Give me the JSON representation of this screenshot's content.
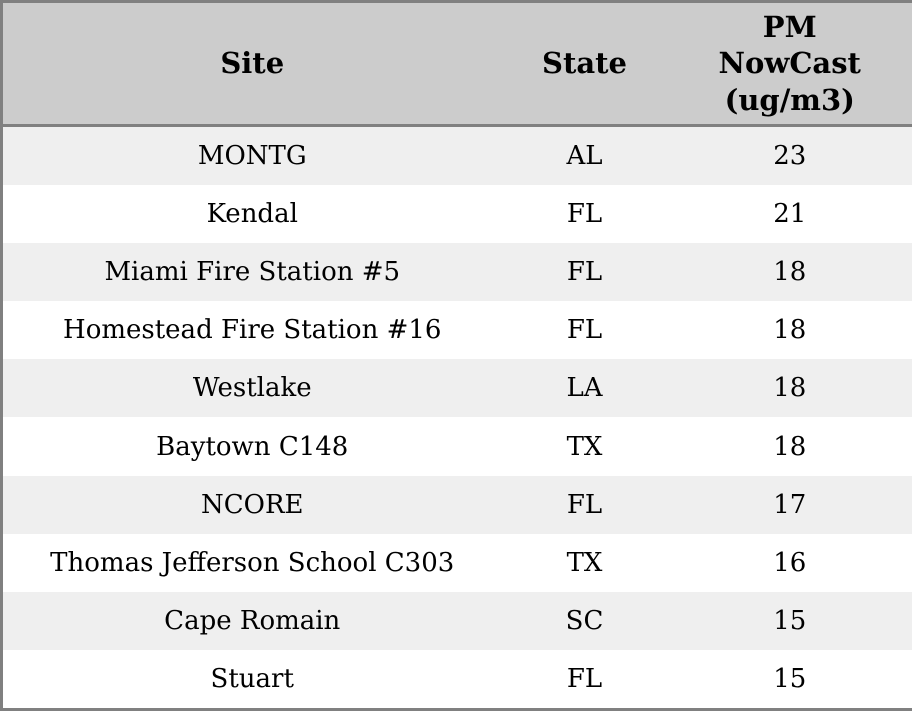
{
  "colors": {
    "header_bg": "#cccccc",
    "row_alt_bg": "#efefef",
    "row_bg": "#ffffff",
    "border": "#808080",
    "text": "#000000"
  },
  "chart_data": {
    "type": "table",
    "title": "",
    "columns": [
      "Site",
      "State",
      "PM\nNowCast\n(ug/m3)"
    ],
    "column_names_plain": [
      "Site",
      "State",
      "PM NowCast (ug/m3)"
    ],
    "rows": [
      {
        "site": "MONTG",
        "state": "AL",
        "pm_nowcast": 23
      },
      {
        "site": "Kendal",
        "state": "FL",
        "pm_nowcast": 21
      },
      {
        "site": "Miami Fire Station #5",
        "state": "FL",
        "pm_nowcast": 18
      },
      {
        "site": "Homestead Fire Station #16",
        "state": "FL",
        "pm_nowcast": 18
      },
      {
        "site": "Westlake",
        "state": "LA",
        "pm_nowcast": 18
      },
      {
        "site": "Baytown C148",
        "state": "TX",
        "pm_nowcast": 18
      },
      {
        "site": "NCORE",
        "state": "FL",
        "pm_nowcast": 17
      },
      {
        "site": "Thomas Jefferson School C303",
        "state": "TX",
        "pm_nowcast": 16
      },
      {
        "site": "Cape Romain",
        "state": "SC",
        "pm_nowcast": 15
      },
      {
        "site": "Stuart",
        "state": "FL",
        "pm_nowcast": 15
      }
    ]
  }
}
